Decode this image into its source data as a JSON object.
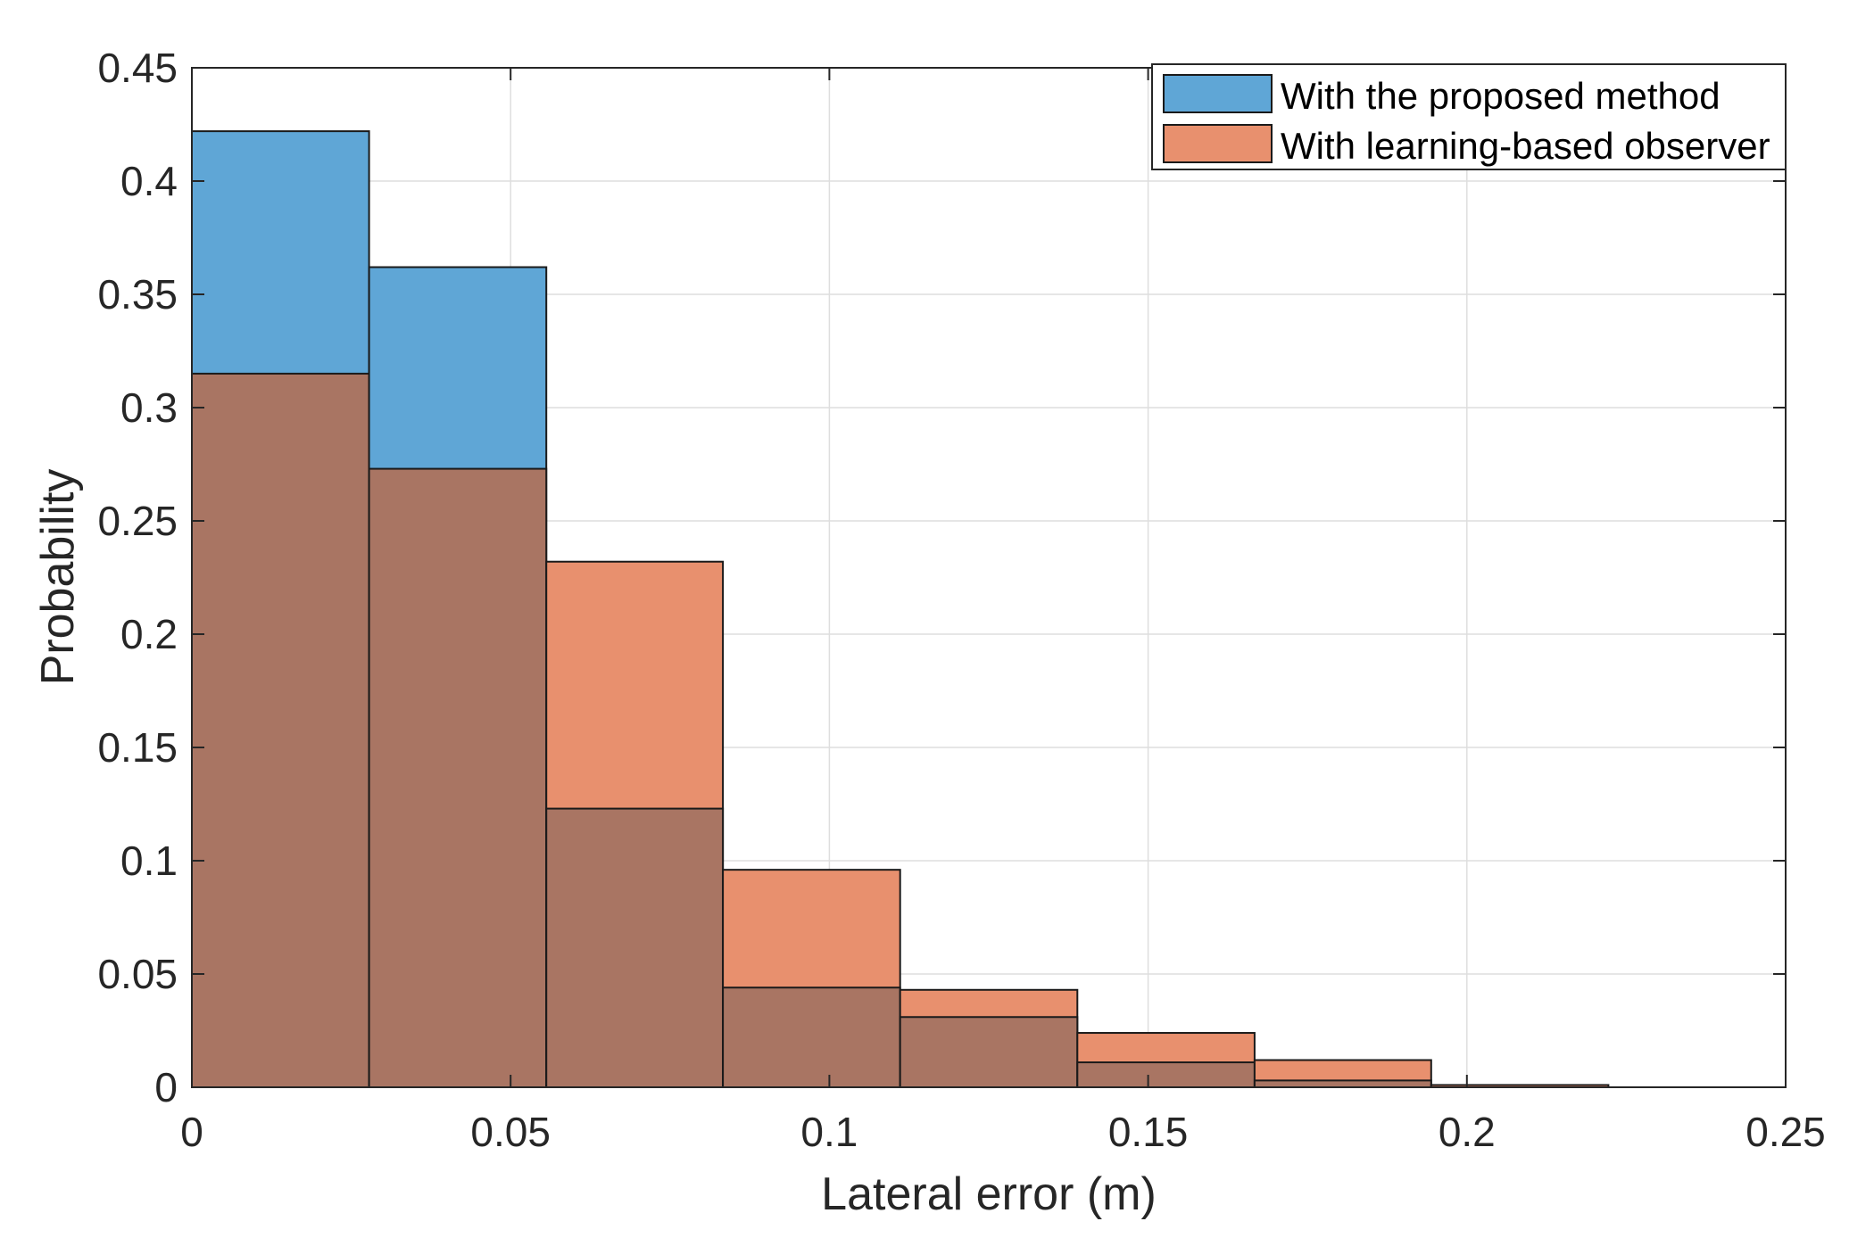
{
  "chart_data": {
    "type": "bar",
    "subtype": "overlaid-histogram",
    "title": "",
    "xlabel": "Lateral error (m)",
    "ylabel": "Probability",
    "xlim": [
      0,
      0.25
    ],
    "ylim": [
      0,
      0.45
    ],
    "xticks": [
      0,
      0.05,
      0.1,
      0.15,
      0.2,
      0.25
    ],
    "xtick_labels": [
      "0",
      "0.05",
      "0.1",
      "0.15",
      "0.2",
      "0.25"
    ],
    "yticks": [
      0,
      0.05,
      0.1,
      0.15,
      0.2,
      0.25,
      0.3,
      0.35,
      0.4,
      0.45
    ],
    "ytick_labels": [
      "0",
      "0.05",
      "0.1",
      "0.15",
      "0.2",
      "0.25",
      "0.3",
      "0.35",
      "0.4",
      "0.45"
    ],
    "grid": true,
    "legend_position": "top-right",
    "bin_edges": [
      0,
      0.0278,
      0.0556,
      0.0833,
      0.1111,
      0.1389,
      0.1667,
      0.1944,
      0.2222
    ],
    "series": [
      {
        "name": "With the proposed method",
        "color": "#5fa6d6",
        "values": [
          0.422,
          0.362,
          0.123,
          0.044,
          0.031,
          0.011,
          0.003,
          0.0
        ]
      },
      {
        "name": "With learning-based observer",
        "color": "#e8906e",
        "values": [
          0.315,
          0.273,
          0.232,
          0.096,
          0.043,
          0.024,
          0.012,
          0.001
        ]
      }
    ],
    "overlap_color": "#a97563"
  }
}
